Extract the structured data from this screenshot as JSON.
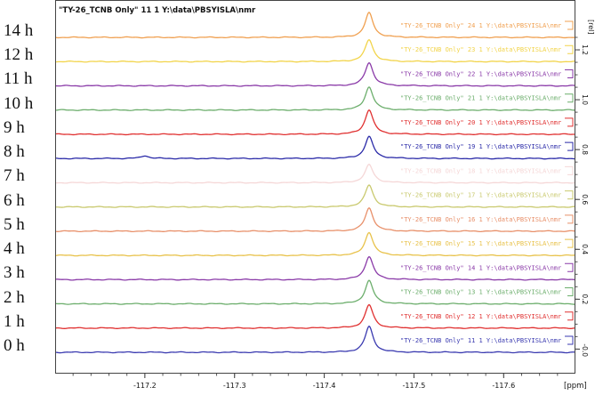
{
  "time_labels": [
    "14 h",
    "12 h",
    "11 h",
    "10 h",
    "9 h",
    "8 h",
    "7 h",
    "6 h",
    "5 h",
    "4 h",
    "3 h",
    "2 h",
    "1 h",
    "0 h"
  ],
  "plot": {
    "header": "\"TY-26_TCNB Only\" 11 1 Y:\\data\\PBSYISLA\\nmr",
    "x_unit": "[ppm]",
    "y_unit": "[rel]"
  },
  "chart_data": {
    "type": "line",
    "xlabel": "[ppm]",
    "ylabel": "[rel]",
    "x_ticks": [
      "-117.2",
      "-117.3",
      "-117.4",
      "-117.5",
      "-117.6"
    ],
    "y_ticks": [
      "1.2",
      "1.0",
      "0.8",
      "0.6",
      "0.4",
      "0.2",
      "-0.0"
    ],
    "xlim": [
      -117.1,
      -117.68
    ],
    "peak_ppm": -117.45,
    "minor_peak_ppm": -117.2,
    "series": [
      {
        "name": "\"TY-26_TCNB Only\" 24 1 Y:\\data\\PBSYISLA\\nmr",
        "color": "#f0a050",
        "peak": 0.095,
        "minor": 0.0
      },
      {
        "name": "\"TY-26_TCNB Only\" 23 1 Y:\\data\\PBSYISLA\\nmr",
        "color": "#f2d44a",
        "peak": 0.085,
        "minor": 0.0
      },
      {
        "name": "\"TY-26_TCNB Only\" 22 1 Y:\\data\\PBSYISLA\\nmr",
        "color": "#8a3aa8",
        "peak": 0.09,
        "minor": 0.0
      },
      {
        "name": "\"TY-26_TCNB Only\" 21 1 Y:\\data\\PBSYISLA\\nmr",
        "color": "#6cae6c",
        "peak": 0.09,
        "minor": 0.0
      },
      {
        "name": "\"TY-26_TCNB Only\" 20 1 Y:\\data\\PBSYISLA\\nmr",
        "color": "#e03030",
        "peak": 0.095,
        "minor": 0.0
      },
      {
        "name": "\"TY-26_TCNB Only\" 19 1 Y:\\data\\PBSYISLA\\nmr",
        "color": "#2a2aa8",
        "peak": 0.085,
        "minor": 0.008
      },
      {
        "name": "\"TY-26_TCNB Only\" 18 1 Y:\\data\\PBSYISLA\\nmr",
        "color": "#f5d7d7",
        "peak": 0.07,
        "minor": 0.0
      },
      {
        "name": "\"TY-26_TCNB Only\" 17 1 Y:\\data\\PBSYISLA\\nmr",
        "color": "#c9c96e",
        "peak": 0.085,
        "minor": 0.0
      },
      {
        "name": "\"TY-26_TCNB Only\" 16 1 Y:\\data\\PBSYISLA\\nmr",
        "color": "#e8906a",
        "peak": 0.09,
        "minor": 0.0
      },
      {
        "name": "\"TY-26_TCNB Only\" 15 1 Y:\\data\\PBSYISLA\\nmr",
        "color": "#e8c24a",
        "peak": 0.09,
        "minor": 0.0
      },
      {
        "name": "\"TY-26_TCNB Only\" 14 1 Y:\\data\\PBSYISLA\\nmr",
        "color": "#8a3aa8",
        "peak": 0.09,
        "minor": 0.0
      },
      {
        "name": "\"TY-26_TCNB Only\" 13 1 Y:\\data\\PBSYISLA\\nmr",
        "color": "#6cae6c",
        "peak": 0.09,
        "minor": 0.0
      },
      {
        "name": "\"TY-26_TCNB Only\" 12 1 Y:\\data\\PBSYISLA\\nmr",
        "color": "#e03030",
        "peak": 0.09,
        "minor": 0.0
      },
      {
        "name": "\"TY-26_TCNB Only\" 11 1 Y:\\data\\PBSYISLA\\nmr",
        "color": "#3a3ab0",
        "peak": 0.1,
        "minor": 0.0
      }
    ]
  }
}
